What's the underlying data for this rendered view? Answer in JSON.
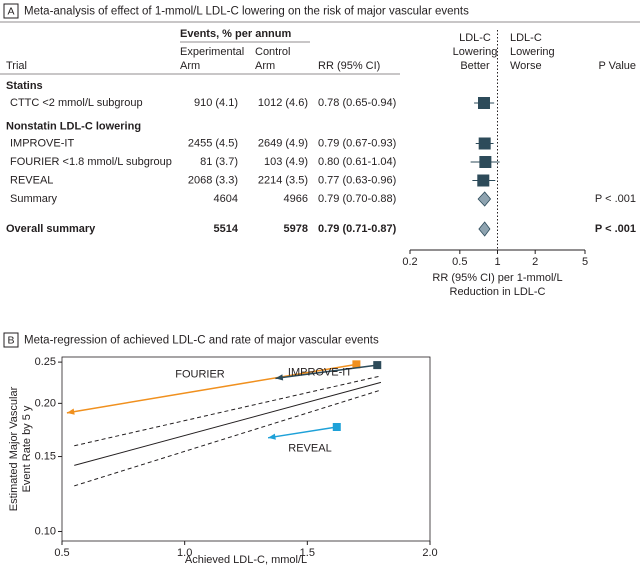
{
  "chart_data": [
    {
      "type": "forest",
      "panel": "A",
      "title": "Meta-analysis of effect of 1-mmol/L LDL-C lowering on the risk of major vascular events",
      "columns": {
        "trial": "Trial",
        "events": "Events, % per annum",
        "experimental": [
          "Experimental",
          "Arm"
        ],
        "control": [
          "Control",
          "Arm"
        ],
        "rr": "RR (95% CI)",
        "p_value": "P Value"
      },
      "favors": {
        "left": [
          "LDL-C",
          "Lowering",
          "Better"
        ],
        "right": [
          "LDL-C",
          "Lowering",
          "Worse"
        ]
      },
      "groups": [
        {
          "name": "Statins",
          "rows": [
            {
              "trial": "CTTC <2 mmol/L subgroup",
              "experimental": "910 (4.1)",
              "control": "1012 (4.6)",
              "rr_label": "0.78 (0.65-0.94)",
              "rr": 0.78,
              "lower": 0.65,
              "upper": 0.94,
              "marker": "square"
            }
          ]
        },
        {
          "name": "Nonstatin LDL-C lowering",
          "rows": [
            {
              "trial": "IMPROVE-IT",
              "experimental": "2455 (4.5)",
              "control": "2649 (4.9)",
              "rr_label": "0.79 (0.67-0.93)",
              "rr": 0.79,
              "lower": 0.67,
              "upper": 0.93,
              "marker": "square"
            },
            {
              "trial": "FOURIER <1.8 mmol/L subgroup",
              "experimental": "81 (3.7)",
              "control": "103 (4.9)",
              "rr_label": "0.80 (0.61-1.04)",
              "rr": 0.8,
              "lower": 0.61,
              "upper": 1.04,
              "marker": "square"
            },
            {
              "trial": "REVEAL",
              "experimental": "2068 (3.3)",
              "control": "2214 (3.5)",
              "rr_label": "0.77 (0.63-0.96)",
              "rr": 0.77,
              "lower": 0.63,
              "upper": 0.96,
              "marker": "square"
            },
            {
              "trial": "Summary",
              "experimental": "4604",
              "control": "4966",
              "rr_label": "0.79 (0.70-0.88)",
              "rr": 0.79,
              "lower": 0.7,
              "upper": 0.88,
              "marker": "diamond",
              "p_value": "P < .001"
            }
          ]
        }
      ],
      "overall": {
        "trial": "Overall summary",
        "experimental": "5514",
        "control": "5978",
        "rr_label": "0.79 (0.71-0.87)",
        "rr": 0.79,
        "lower": 0.71,
        "upper": 0.87,
        "marker": "diamond",
        "p_value": "P < .001"
      },
      "x_label": [
        "RR (95% CI) per 1-mmol/L",
        "Reduction in LDL-C"
      ],
      "log_x": true,
      "xlim": [
        0.2,
        5
      ],
      "xticks": [
        0.2,
        0.5,
        1,
        2,
        5
      ],
      "reference_line": 1,
      "marker_color": "#2d4b5a",
      "summary_color": "#8ea3b0"
    },
    {
      "type": "line",
      "panel": "B",
      "title": "Meta-regression of achieved LDL-C and rate of major vascular events",
      "x_label": "Achieved LDL-C, mmol/L",
      "y_label": [
        "Estimated Major Vascular",
        "Event Rate by 5 y"
      ],
      "log_y": true,
      "xlim": [
        0.5,
        2.0
      ],
      "xticks": [
        0.5,
        {
          "value": 1.0,
          "label": "1.0"
        },
        1.5,
        {
          "value": 2.0,
          "label": "2.0"
        }
      ],
      "ylim": [
        0.095,
        0.257
      ],
      "yticks": [
        {
          "value": 0.1,
          "label": "0.10"
        },
        {
          "value": 0.15,
          "label": "0.15"
        },
        {
          "value": 0.2,
          "label": "0.20"
        },
        0.25
      ],
      "regression": [
        {
          "x": [
            0.55,
            1.8
          ],
          "values": [
            0.143,
            0.224
          ],
          "style": "solid"
        },
        {
          "x": [
            0.55,
            1.8
          ],
          "values": [
            0.159,
            0.232
          ],
          "style": "dashed"
        },
        {
          "x": [
            0.55,
            1.8
          ],
          "values": [
            0.128,
            0.215
          ],
          "style": "dashed"
        }
      ],
      "series": [
        {
          "name": "FOURIER",
          "color": "#f0901e",
          "x": [
            1.7,
            0.52
          ],
          "values": [
            0.247,
            0.19
          ]
        },
        {
          "name": "IMPROVE-IT",
          "color": "#2d4b5a",
          "x": [
            1.785,
            1.37
          ],
          "values": [
            0.246,
            0.229
          ]
        },
        {
          "name": "REVEAL",
          "color": "#1ea1d8",
          "x": [
            1.62,
            1.34
          ],
          "values": [
            0.176,
            0.166
          ]
        }
      ]
    }
  ]
}
